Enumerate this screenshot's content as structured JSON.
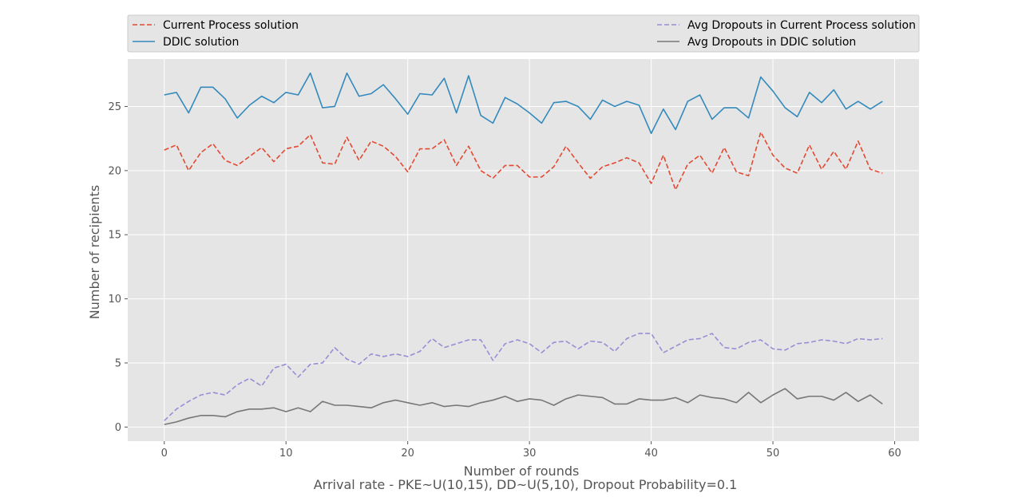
{
  "chart_data": {
    "type": "line",
    "title": "",
    "xlabel": "Number of rounds",
    "ylabel": "Number of recipients",
    "caption": "Arrival rate - PKE~U(10,15), DD~U(5,10), Dropout Probability=0.1",
    "xlim": [
      -3,
      62
    ],
    "ylim": [
      -1.1,
      28.7
    ],
    "xticks": [
      0,
      10,
      20,
      30,
      40,
      50,
      60
    ],
    "yticks": [
      0,
      5,
      10,
      15,
      20,
      25
    ],
    "grid": true,
    "legend_position": "top (above plot, two columns)",
    "x": [
      0,
      1,
      2,
      3,
      4,
      5,
      6,
      7,
      8,
      9,
      10,
      11,
      12,
      13,
      14,
      15,
      16,
      17,
      18,
      19,
      20,
      21,
      22,
      23,
      24,
      25,
      26,
      27,
      28,
      29,
      30,
      31,
      32,
      33,
      34,
      35,
      36,
      37,
      38,
      39,
      40,
      41,
      42,
      43,
      44,
      45,
      46,
      47,
      48,
      49,
      50,
      51,
      52,
      53,
      54,
      55,
      56,
      57,
      58,
      59
    ],
    "series": [
      {
        "name": "Current Process solution",
        "color": "#E24A33",
        "style": "dashed",
        "values": [
          21.6,
          22.0,
          20.0,
          21.4,
          22.1,
          20.8,
          20.4,
          21.1,
          21.8,
          20.7,
          21.7,
          21.9,
          22.8,
          20.6,
          20.5,
          22.6,
          20.8,
          22.3,
          21.9,
          21.1,
          19.9,
          21.7,
          21.7,
          22.4,
          20.4,
          21.9,
          20.0,
          19.4,
          20.4,
          20.4,
          19.5,
          19.5,
          20.3,
          21.9,
          20.6,
          19.4,
          20.3,
          20.6,
          21.0,
          20.6,
          19.0,
          21.2,
          18.5,
          20.5,
          21.2,
          19.8,
          21.8,
          19.9,
          19.6,
          23.0,
          21.2,
          20.2,
          19.8,
          22.0,
          20.1,
          21.5,
          20.1,
          22.3,
          20.1,
          19.8
        ]
      },
      {
        "name": "DDIC solution",
        "color": "#348ABD",
        "style": "solid",
        "values": [
          25.9,
          26.1,
          24.5,
          26.5,
          26.5,
          25.6,
          24.1,
          25.1,
          25.8,
          25.3,
          26.1,
          25.9,
          27.6,
          24.9,
          25.0,
          27.6,
          25.8,
          26.0,
          26.7,
          25.6,
          24.4,
          26.0,
          25.9,
          27.2,
          24.5,
          27.4,
          24.3,
          23.7,
          25.7,
          25.2,
          24.5,
          23.7,
          25.3,
          25.4,
          25.0,
          24.0,
          25.5,
          25.0,
          25.4,
          25.1,
          22.9,
          24.8,
          23.2,
          25.4,
          25.9,
          24.0,
          24.9,
          24.9,
          24.1,
          27.3,
          26.2,
          24.9,
          24.2,
          26.1,
          25.3,
          26.3,
          24.8,
          25.4,
          24.8,
          25.4
        ]
      },
      {
        "name": "Avg Dropouts in Current Process solution",
        "color": "#988ED5",
        "style": "dashed",
        "values": [
          0.5,
          1.4,
          2.0,
          2.5,
          2.7,
          2.5,
          3.3,
          3.8,
          3.2,
          4.6,
          4.9,
          3.9,
          4.9,
          5.0,
          6.2,
          5.3,
          4.9,
          5.7,
          5.5,
          5.7,
          5.5,
          5.9,
          6.9,
          6.2,
          6.5,
          6.8,
          6.8,
          5.2,
          6.5,
          6.8,
          6.5,
          5.8,
          6.6,
          6.7,
          6.1,
          6.7,
          6.6,
          5.9,
          6.9,
          7.3,
          7.3,
          5.8,
          6.3,
          6.8,
          6.9,
          7.3,
          6.2,
          6.1,
          6.6,
          6.8,
          6.1,
          6.0,
          6.5,
          6.6,
          6.8,
          6.7,
          6.5,
          6.9,
          6.8,
          6.9
        ]
      },
      {
        "name": "Avg Dropouts in DDIC solution",
        "color": "#777777",
        "style": "solid",
        "values": [
          0.2,
          0.4,
          0.7,
          0.9,
          0.9,
          0.8,
          1.2,
          1.4,
          1.4,
          1.5,
          1.2,
          1.5,
          1.2,
          2.0,
          1.7,
          1.7,
          1.6,
          1.5,
          1.9,
          2.1,
          1.9,
          1.7,
          1.9,
          1.6,
          1.7,
          1.6,
          1.9,
          2.1,
          2.4,
          2.0,
          2.2,
          2.1,
          1.7,
          2.2,
          2.5,
          2.4,
          2.3,
          1.8,
          1.8,
          2.2,
          2.1,
          2.1,
          2.3,
          1.9,
          2.5,
          2.3,
          2.2,
          1.9,
          2.7,
          1.9,
          2.5,
          3.0,
          2.2,
          2.4,
          2.4,
          2.1,
          2.7,
          2.0,
          2.5,
          1.8
        ]
      }
    ]
  }
}
